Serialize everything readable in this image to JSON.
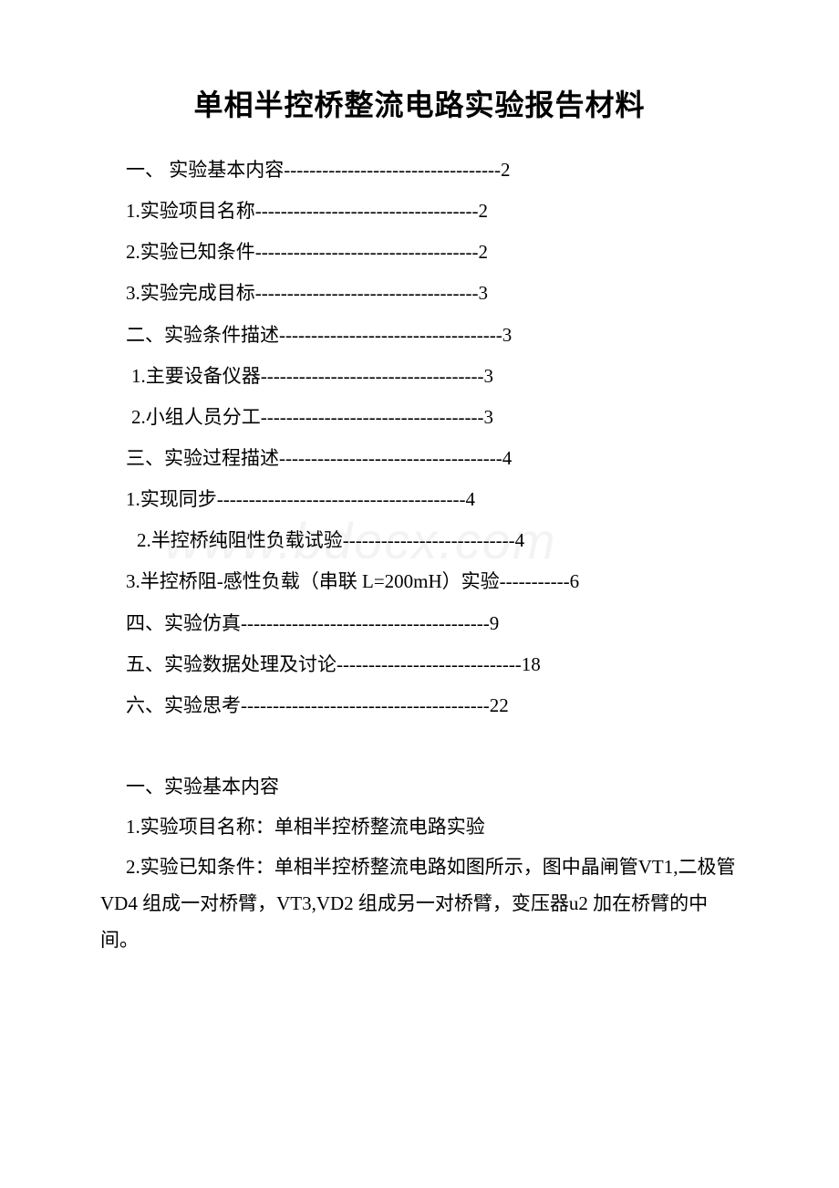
{
  "title": "单相半控桥整流电路实验报告材料",
  "toc": [
    {
      "text": "一、 实验基本内容----------------------------------2",
      "indent": 0
    },
    {
      "text": "1.实验项目名称-----------------------------------2",
      "indent": 0
    },
    {
      "text": "2.实验已知条件-----------------------------------2",
      "indent": 0
    },
    {
      "text": "3.实验完成目标-----------------------------------3",
      "indent": 0
    },
    {
      "text": "二、实验条件描述-----------------------------------3",
      "indent": 0
    },
    {
      "text": "1.主要设备仪器-----------------------------------3",
      "indent": 1
    },
    {
      "text": "2.小组人员分工-----------------------------------3",
      "indent": 1
    },
    {
      "text": "三、实验过程描述-----------------------------------4",
      "indent": 0
    },
    {
      "text": "1.实现同步---------------------------------------4",
      "indent": 0
    },
    {
      "text": "2.半控桥纯阻性负载试验---------------------------4",
      "indent": 2
    },
    {
      "text": "3.半控桥阻-感性负载（串联 L=200mH）实验-----------6",
      "indent": 0
    },
    {
      "text": "四、实验仿真---------------------------------------9",
      "indent": 0
    },
    {
      "text": "五、实验数据处理及讨论-----------------------------18",
      "indent": 0
    },
    {
      "text": "六、实验思考---------------------------------------22",
      "indent": 0
    }
  ],
  "section_head": "一、实验基本内容",
  "body1": "1.实验项目名称：单相半控桥整流电路实验",
  "body2": "2.实验已知条件：单相半控桥整流电路如图所示，图中晶闸管VT1,二极管 VD4 组成一对桥臂，VT3,VD2 组成另一对桥臂，变压器u2 加在桥臂的中间。",
  "watermark": "www.bdocx.com"
}
